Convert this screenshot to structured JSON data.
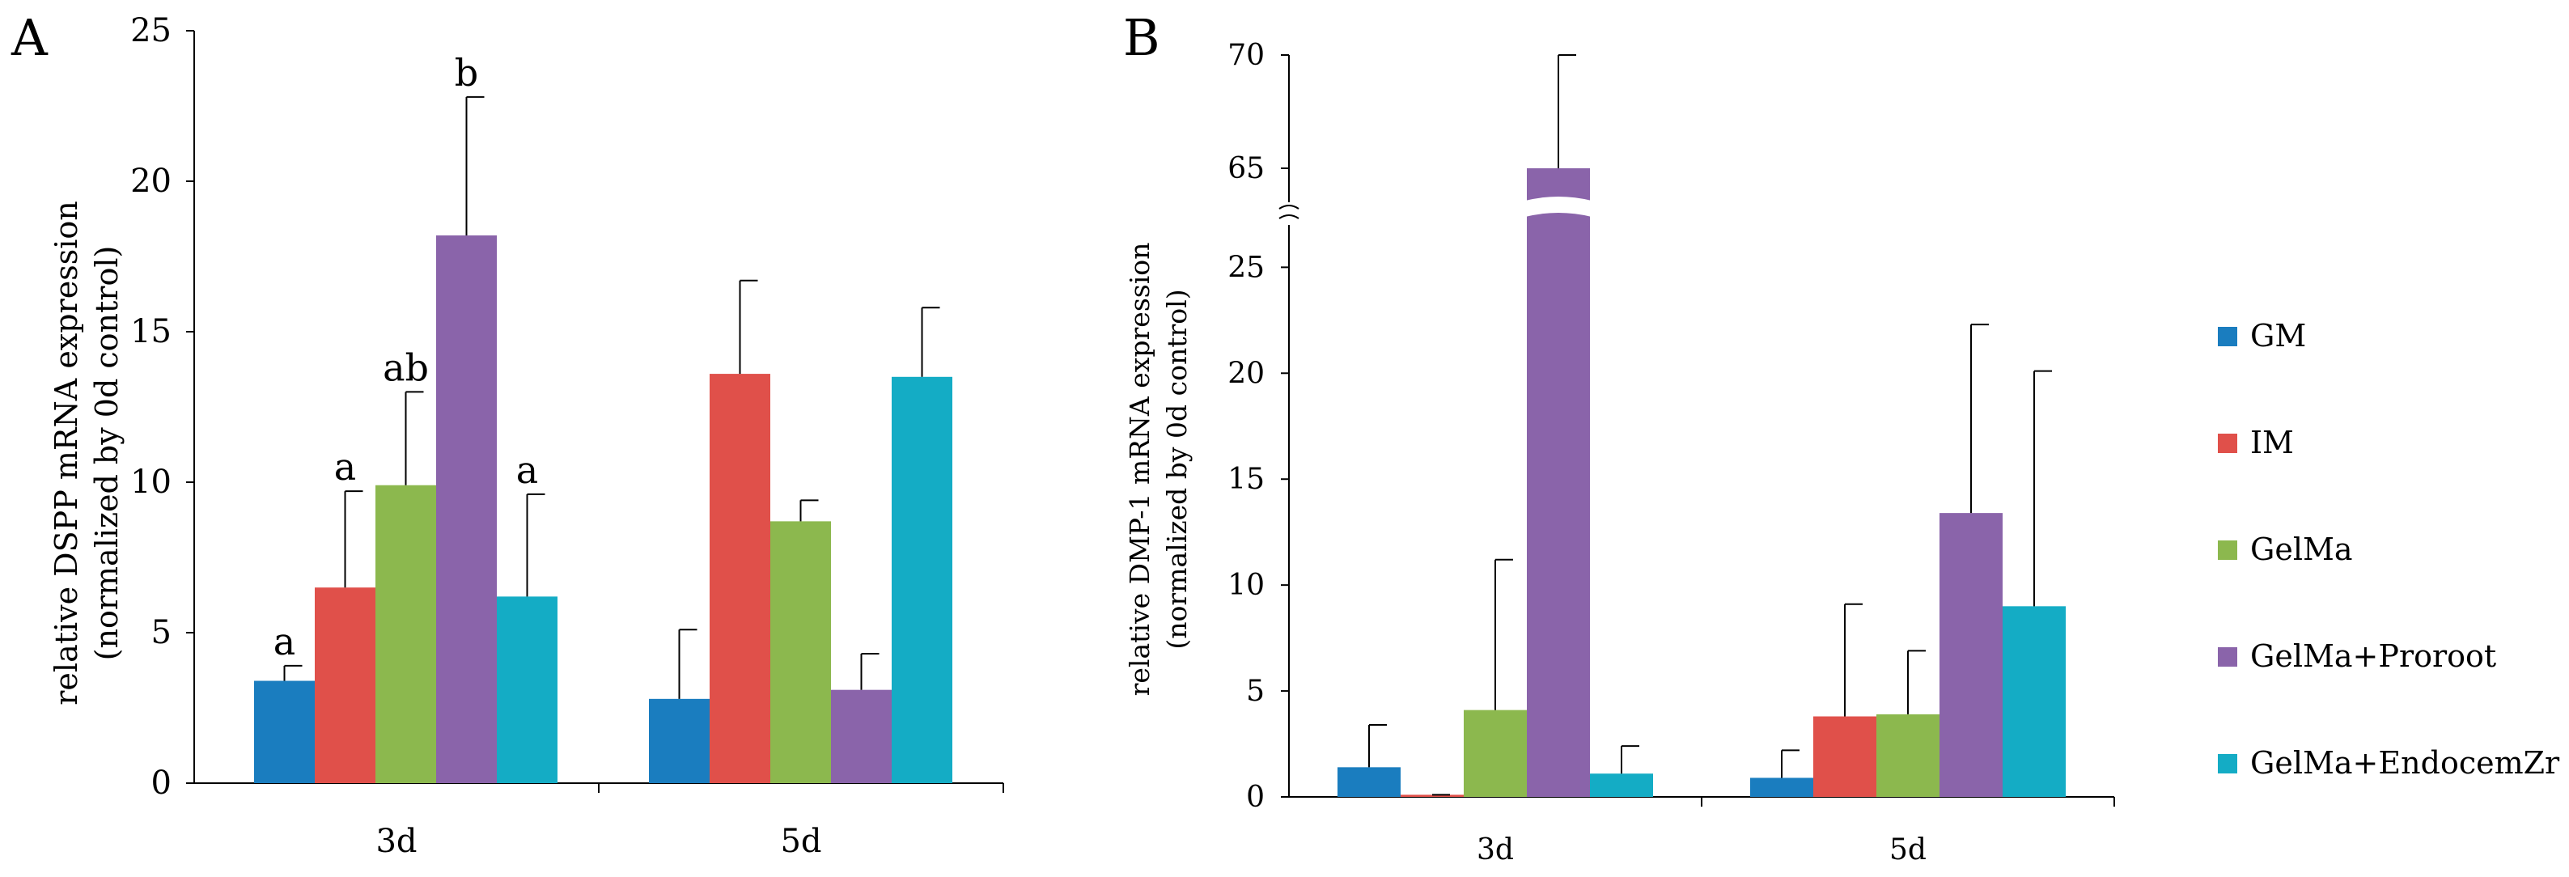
{
  "colors": {
    "series": [
      "#1a7dbf",
      "#e0504a",
      "#8cb84e",
      "#8a64aa",
      "#14acc5"
    ],
    "axis": "#000000",
    "error_bar": "#000000"
  },
  "legend": {
    "items": [
      "GM",
      "IM",
      "GelMa",
      "GelMa+Proroot",
      "GelMa+EndocemZr"
    ]
  },
  "chart_data": [
    {
      "panel_label": "A",
      "type": "bar",
      "title": "",
      "ylabel_line1": "relative DSPP mRNA expression",
      "ylabel_line2": "(normalized by 0d control)",
      "xlabel": "",
      "categories": [
        "3d",
        "5d"
      ],
      "ylim": [
        0,
        25
      ],
      "yticks": [
        0,
        5,
        10,
        15,
        20,
        25
      ],
      "series": [
        {
          "name": "GM",
          "values": [
            3.4,
            2.8
          ],
          "errors": [
            0.5,
            2.3
          ],
          "annotations": [
            "a",
            ""
          ]
        },
        {
          "name": "IM",
          "values": [
            6.5,
            13.6
          ],
          "errors": [
            3.2,
            3.1
          ],
          "annotations": [
            "a",
            ""
          ]
        },
        {
          "name": "GelMa",
          "values": [
            9.9,
            8.7
          ],
          "errors": [
            3.1,
            0.7
          ],
          "annotations": [
            "ab",
            ""
          ]
        },
        {
          "name": "GelMa+Proroot",
          "values": [
            18.2,
            3.1
          ],
          "errors": [
            4.6,
            1.2
          ],
          "annotations": [
            "b",
            ""
          ]
        },
        {
          "name": "GelMa+EndocemZr",
          "values": [
            6.2,
            13.5
          ],
          "errors": [
            3.4,
            2.3
          ],
          "annotations": [
            "a",
            ""
          ]
        }
      ]
    },
    {
      "panel_label": "B",
      "type": "bar",
      "title": "",
      "ylabel_line1": "relative DMP-1 mRNA expression",
      "ylabel_line2": "(normalized by 0d control)",
      "xlabel": "",
      "categories": [
        "3d",
        "5d"
      ],
      "axis_break": {
        "lower_range": [
          0,
          27
        ],
        "upper_range": [
          63.5,
          70
        ]
      },
      "yticks_lower": [
        0,
        5,
        10,
        15,
        20,
        25
      ],
      "yticks_upper": [
        65,
        70
      ],
      "series": [
        {
          "name": "GM",
          "values": [
            1.4,
            0.9
          ],
          "errors": [
            2.0,
            1.3
          ]
        },
        {
          "name": "IM",
          "values": [
            0.1,
            3.8
          ],
          "errors": [
            0.0,
            5.3
          ]
        },
        {
          "name": "GelMa",
          "values": [
            4.1,
            3.9
          ],
          "errors": [
            7.1,
            3.0
          ]
        },
        {
          "name": "GelMa+Proroot",
          "values": [
            65,
            13.4
          ],
          "errors": [
            5.0,
            8.9
          ]
        },
        {
          "name": "GelMa+EndocemZr",
          "values": [
            1.1,
            9.0
          ],
          "errors": [
            1.3,
            11.1
          ]
        }
      ]
    }
  ]
}
